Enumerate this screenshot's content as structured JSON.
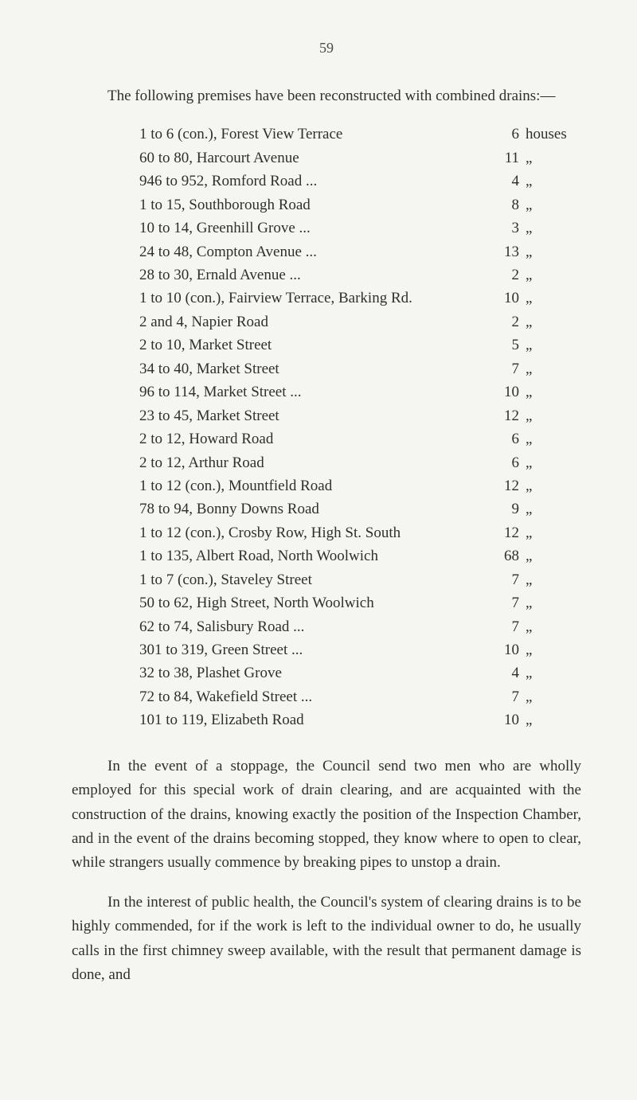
{
  "page_number": "59",
  "intro_paragraph": "The following premises have been reconstructed with combined drains:—",
  "first_unit": "houses",
  "ditto": "„",
  "drain_items": [
    {
      "desc": "1 to 6 (con.), Forest View Terrace",
      "dots": "...",
      "count": "6",
      "first": true
    },
    {
      "desc": "60 to 80, Harcourt Avenue",
      "dots": "...",
      "count": "11"
    },
    {
      "desc": "946 to 952, Romford Road ...",
      "dots": "...",
      "count": "4"
    },
    {
      "desc": "1 to 15, Southborough Road",
      "dots": "...",
      "count": "8"
    },
    {
      "desc": "10 to 14, Greenhill Grove ...",
      "dots": "...",
      "count": "3"
    },
    {
      "desc": "24 to 48, Compton Avenue ...",
      "dots": "...",
      "count": "13"
    },
    {
      "desc": "28 to 30, Ernald Avenue   ...",
      "dots": "...",
      "count": "2"
    },
    {
      "desc": "1 to 10 (con.), Fairview Terrace, Barking Rd.",
      "dots": "",
      "count": "10"
    },
    {
      "desc": "2 and 4, Napier Road",
      "dots": "...            ...",
      "count": "2"
    },
    {
      "desc": "2 to 10, Market Street",
      "dots": "...            ...",
      "count": "5"
    },
    {
      "desc": "34 to 40, Market Street",
      "dots": "...            ...",
      "count": "7"
    },
    {
      "desc": "96 to 114, Market Street    ...",
      "dots": "...",
      "count": "10"
    },
    {
      "desc": "23 to 45, Market Street",
      "dots": "...            ...",
      "count": "12"
    },
    {
      "desc": "2 to 12, Howard Road",
      "dots": "...            ...",
      "count": "6"
    },
    {
      "desc": "2 to 12, Arthur Road",
      "dots": "...            ...",
      "count": "6"
    },
    {
      "desc": "1 to 12 (con.), Mountfield Road",
      "dots": "...",
      "count": "12"
    },
    {
      "desc": "78 to 94, Bonny Downs Road",
      "dots": "...",
      "count": "9"
    },
    {
      "desc": "1 to 12 (con.), Crosby Row, High St. South",
      "dots": "",
      "count": "12"
    },
    {
      "desc": "1 to 135, Albert Road, North Woolwich",
      "dots": "",
      "count": "68"
    },
    {
      "desc": "1 to 7 (con.), Staveley Street",
      "dots": "...",
      "count": "7"
    },
    {
      "desc": "50 to 62, High Street, North Woolwich",
      "dots": "",
      "count": "7"
    },
    {
      "desc": "62 to 74, Salisbury Road    ...",
      "dots": "...",
      "count": "7"
    },
    {
      "desc": "301 to 319, Green Street    ...",
      "dots": "...",
      "count": "10"
    },
    {
      "desc": "32 to 38, Plashet Grove",
      "dots": "...            ...",
      "count": "4"
    },
    {
      "desc": "72 to 84, Wakefield Street ...",
      "dots": "...",
      "count": "7"
    },
    {
      "desc": "101 to 119, Elizabeth Road",
      "dots": "...",
      "count": "10"
    }
  ],
  "middle_paragraph": "In the event of a stoppage, the Council send two men who are wholly employed for this special work of drain clearing, and are acquainted with the construction of the drains, knowing exactly the position of the Inspection Chamber, and in the event of the drains becoming stopped, they know where to open to clear, while strangers usually commence by breaking pipes to unstop a drain.",
  "final_paragraph": "In the interest of public health, the Council's system of clearing drains is to be highly commended, for if the work is left to the individual owner to do, he usually calls in the first chimney sweep available, with the result that permanent damage is done, and",
  "colors": {
    "background": "#f5f5f1",
    "text": "#2f2f2d",
    "page_number": "#4a4a46"
  },
  "typography": {
    "body_fontsize": 19,
    "page_number_fontsize": 18,
    "line_height": 1.6,
    "font_family": "Georgia, Times New Roman, serif"
  }
}
